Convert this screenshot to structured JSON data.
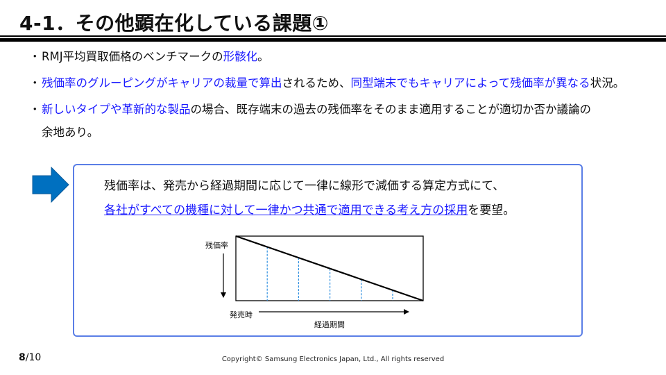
{
  "title": "4-1．その他顕在化している課題①",
  "bullets": [
    {
      "segments": [
        {
          "text": "RMJ平均買取価格のベンチマークの",
          "blue": false
        },
        {
          "text": "形骸化",
          "blue": true
        },
        {
          "text": "。",
          "blue": false
        }
      ]
    },
    {
      "segments": [
        {
          "text": "残価率のグルーピングがキャリアの裁量で算出",
          "blue": true
        },
        {
          "text": "されるため、",
          "blue": false
        },
        {
          "text": "同型端末でもキャリアによって残価率が異なる",
          "blue": true
        },
        {
          "text": "状況。",
          "blue": false
        }
      ]
    },
    {
      "segments": [
        {
          "text": "新しいタイプや革新的な製品",
          "blue": true
        },
        {
          "text": "の場合、既存端末の過去の残価率をそのまま適用することが適切か否か議論の",
          "blue": false
        }
      ],
      "continuation": "余地あり。"
    }
  ],
  "bullet_marker": "・",
  "proposal": {
    "line1": "残価率は、発売から経過期間に応じて一律に線形で減価する算定方式にて、",
    "line2_underlined": "各社がすべての機種に対して一律かつ共通で適用できる考え方の採用",
    "line2_tail": "を要望。"
  },
  "diagram": {
    "y_label": "残価率",
    "x_start_label": "発売時",
    "x_label": "経過期間"
  },
  "colors": {
    "accent_blue": "#1a1aff",
    "arrow": "#0070c0",
    "box_border": "#5a7ee6",
    "dash": "#2e8fe0"
  },
  "footer": {
    "page_current": "8",
    "page_total": "/10",
    "copyright": "Copyright© Samsung Electronics Japan, Ltd., All rights reserved"
  }
}
